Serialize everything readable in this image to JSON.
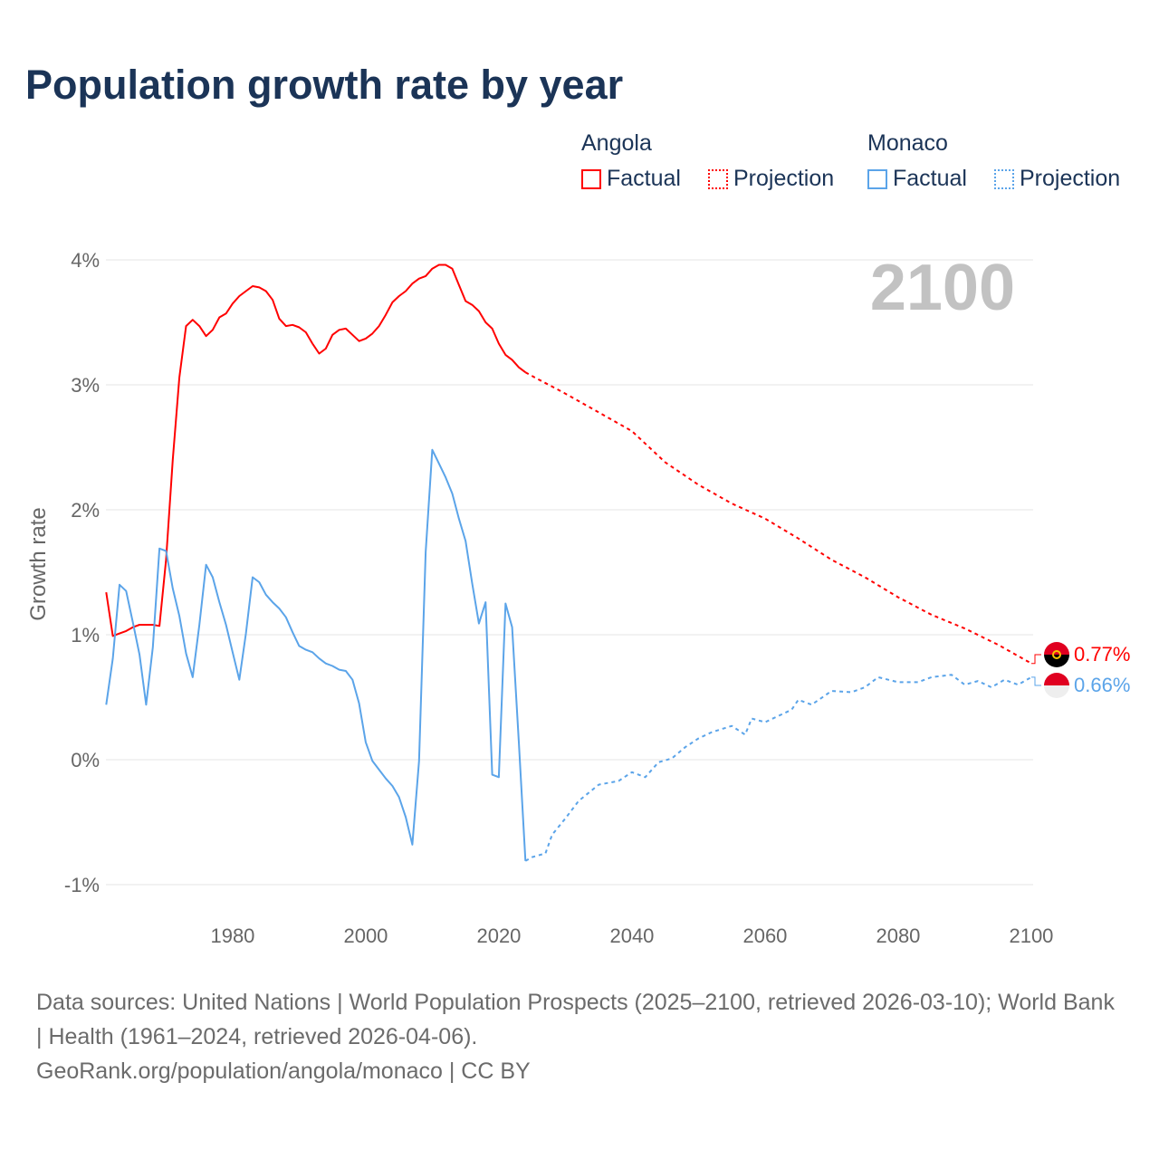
{
  "title": "Population growth rate by year",
  "legend": {
    "groups": [
      {
        "name": "Angola",
        "color": "#ff0000",
        "factual_label": "Factual",
        "projection_label": "Projection"
      },
      {
        "name": "Monaco",
        "color": "#5ba4e9",
        "factual_label": "Factual",
        "projection_label": "Projection"
      }
    ]
  },
  "year_display": "2100",
  "end_labels": {
    "angola": "0.77%",
    "monaco": "0.66%"
  },
  "footer": {
    "sources": "Data sources: United Nations | World Population Prospects (2025–2100, retrieved 2026-03-10); World Bank | Health (1961–2024, retrieved 2026-04-06).",
    "credit": "GeoRank.org/population/angola/monaco | CC BY"
  },
  "chart_data": {
    "type": "line",
    "title": "Population growth rate by year",
    "xlabel": "",
    "ylabel": "Growth rate",
    "xlim": [
      1961,
      2100
    ],
    "ylim": [
      -1.2,
      4.1
    ],
    "x_ticks": [
      1980,
      2000,
      2020,
      2040,
      2060,
      2080,
      2100
    ],
    "x_tick_labels": [
      "1980",
      "2000",
      "2020",
      "2040",
      "2060",
      "2080",
      "2100"
    ],
    "y_ticks": [
      4,
      3,
      2,
      1,
      0,
      -1
    ],
    "y_tick_labels": [
      "4%",
      "3%",
      "2%",
      "1%",
      "0%",
      "-1%"
    ],
    "grid": true,
    "legend_position": "top-right",
    "series": [
      {
        "name": "Angola Factual",
        "color": "#ff0000",
        "style": "solid",
        "x": [
          1961,
          1962,
          1963,
          1964,
          1965,
          1966,
          1967,
          1968,
          1969,
          1970,
          1971,
          1972,
          1973,
          1974,
          1975,
          1976,
          1977,
          1978,
          1979,
          1980,
          1981,
          1982,
          1983,
          1984,
          1985,
          1986,
          1987,
          1988,
          1989,
          1990,
          1991,
          1992,
          1993,
          1994,
          1995,
          1996,
          1997,
          1998,
          1999,
          2000,
          2001,
          2002,
          2003,
          2004,
          2005,
          2006,
          2007,
          2008,
          2009,
          2010,
          2011,
          2012,
          2013,
          2014,
          2015,
          2016,
          2017,
          2018,
          2019,
          2020,
          2021,
          2022,
          2023,
          2024
        ],
        "values": [
          1.34,
          0.99,
          1.01,
          1.03,
          1.06,
          1.08,
          1.08,
          1.08,
          1.07,
          1.6,
          2.4,
          3.06,
          3.47,
          3.52,
          3.47,
          3.39,
          3.44,
          3.54,
          3.57,
          3.65,
          3.71,
          3.75,
          3.79,
          3.78,
          3.75,
          3.68,
          3.53,
          3.47,
          3.48,
          3.46,
          3.42,
          3.33,
          3.25,
          3.29,
          3.4,
          3.44,
          3.45,
          3.4,
          3.35,
          3.37,
          3.41,
          3.47,
          3.56,
          3.66,
          3.71,
          3.75,
          3.81,
          3.85,
          3.87,
          3.93,
          3.96,
          3.96,
          3.93,
          3.8,
          3.67,
          3.64,
          3.59,
          3.5,
          3.45,
          3.33,
          3.24,
          3.2,
          3.14,
          3.1
        ]
      },
      {
        "name": "Angola Projection",
        "color": "#ff0000",
        "style": "dotted",
        "x": [
          2024,
          2025,
          2030,
          2035,
          2040,
          2045,
          2050,
          2055,
          2060,
          2065,
          2070,
          2075,
          2080,
          2085,
          2090,
          2095,
          2100
        ],
        "values": [
          3.1,
          3.07,
          2.93,
          2.78,
          2.63,
          2.38,
          2.2,
          2.05,
          1.93,
          1.77,
          1.6,
          1.46,
          1.3,
          1.16,
          1.05,
          0.92,
          0.77
        ]
      },
      {
        "name": "Monaco Factual",
        "color": "#5ba4e9",
        "style": "solid",
        "x": [
          1961,
          1962,
          1963,
          1964,
          1965,
          1966,
          1967,
          1968,
          1969,
          1970,
          1971,
          1972,
          1973,
          1974,
          1975,
          1976,
          1977,
          1978,
          1979,
          1980,
          1981,
          1982,
          1983,
          1984,
          1985,
          1986,
          1987,
          1988,
          1989,
          1990,
          1991,
          1992,
          1993,
          1994,
          1995,
          1996,
          1997,
          1998,
          1999,
          2000,
          2001,
          2002,
          2003,
          2004,
          2005,
          2006,
          2007,
          2008,
          2009,
          2010,
          2011,
          2012,
          2013,
          2014,
          2015,
          2016,
          2017,
          2018,
          2019,
          2020,
          2021,
          2022,
          2023,
          2024
        ],
        "values": [
          0.44,
          0.81,
          1.4,
          1.35,
          1.1,
          0.84,
          0.44,
          0.9,
          1.69,
          1.67,
          1.37,
          1.15,
          0.85,
          0.66,
          1.08,
          1.56,
          1.46,
          1.26,
          1.08,
          0.86,
          0.64,
          1.01,
          1.46,
          1.42,
          1.32,
          1.26,
          1.21,
          1.14,
          1.02,
          0.91,
          0.88,
          0.86,
          0.81,
          0.77,
          0.75,
          0.72,
          0.71,
          0.64,
          0.45,
          0.14,
          -0.01,
          -0.08,
          -0.15,
          -0.21,
          -0.3,
          -0.46,
          -0.68,
          -0.01,
          1.66,
          2.48,
          2.37,
          2.26,
          2.13,
          1.93,
          1.75,
          1.41,
          1.09,
          1.26,
          -0.12,
          -0.14,
          1.25,
          1.06,
          0.14,
          -0.81
        ]
      },
      {
        "name": "Monaco Projection",
        "color": "#5ba4e9",
        "style": "dotted",
        "x": [
          2024,
          2025,
          2027,
          2028,
          2030,
          2032,
          2035,
          2038,
          2040,
          2042,
          2044,
          2046,
          2048,
          2050,
          2052,
          2055,
          2057,
          2058,
          2060,
          2062,
          2064,
          2065,
          2067,
          2070,
          2073,
          2075,
          2077,
          2080,
          2083,
          2085,
          2088,
          2090,
          2092,
          2094,
          2096,
          2098,
          2100
        ],
        "values": [
          -0.81,
          -0.78,
          -0.75,
          -0.6,
          -0.47,
          -0.33,
          -0.2,
          -0.17,
          -0.1,
          -0.14,
          -0.02,
          0.01,
          0.1,
          0.17,
          0.22,
          0.27,
          0.2,
          0.33,
          0.3,
          0.35,
          0.4,
          0.48,
          0.44,
          0.55,
          0.54,
          0.58,
          0.66,
          0.62,
          0.62,
          0.66,
          0.68,
          0.6,
          0.63,
          0.58,
          0.64,
          0.6,
          0.66
        ]
      }
    ]
  }
}
